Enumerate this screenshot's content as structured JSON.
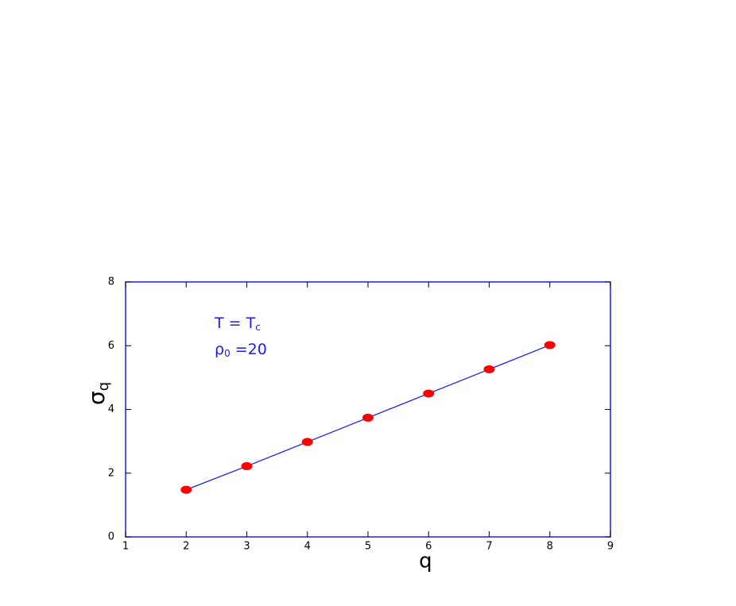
{
  "chart_data": {
    "type": "line",
    "x": [
      2,
      3,
      4,
      5,
      6,
      7,
      8
    ],
    "series": [
      {
        "values": [
          1.48,
          2.22,
          2.98,
          3.74,
          4.5,
          5.26,
          6.02
        ],
        "color": "#1a1aff",
        "marker_color": "#ff0000"
      }
    ],
    "xlabel": "q",
    "ylabel": [
      "σ",
      "q"
    ],
    "annotations": [
      [
        "T = T",
        "c"
      ],
      [
        "ρ",
        "0",
        " =20"
      ]
    ],
    "xlim": [
      1,
      9
    ],
    "xticks": [
      1,
      2,
      3,
      4,
      5,
      6,
      7,
      8,
      9
    ],
    "ylim": [
      0,
      8
    ],
    "yticks": [
      0,
      2,
      4,
      6,
      8
    ],
    "frame_color": "#1a1aff"
  }
}
